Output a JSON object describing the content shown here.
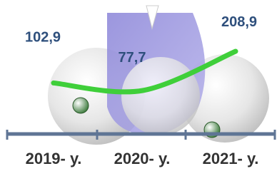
{
  "chart_data": {
    "type": "line",
    "categories": [
      "2019- у.",
      "2020- у.",
      "2021- у."
    ],
    "values": [
      102.9,
      77.7,
      208.9
    ],
    "value_labels": [
      "102,9",
      "77,7",
      "208,9"
    ],
    "color": "#3fcf3a"
  }
}
